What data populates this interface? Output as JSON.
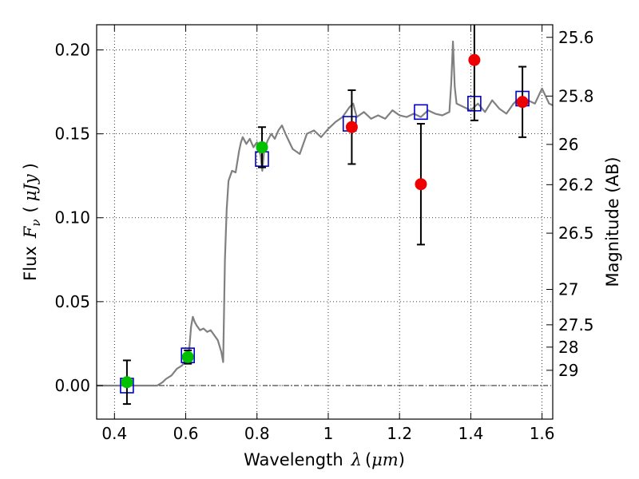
{
  "chart_data": {
    "type": "scatter",
    "xlabel": {
      "text": "Wavelength",
      "symbol": "λ",
      "unit_open": "(",
      "unit": "μm",
      "unit_close": ")"
    },
    "ylabel": {
      "text": "Flux",
      "symbol": "F",
      "subscript": "ν",
      "unit_open": "(",
      "unit": "μJy",
      "unit_close": ")"
    },
    "y2label": "Magnitude (AB)",
    "xlim": [
      0.35,
      1.63
    ],
    "ylim": [
      -0.02,
      0.215
    ],
    "grid": true,
    "zero_line": true,
    "x_ticks": [
      0.4,
      0.6,
      0.8,
      1.0,
      1.2,
      1.4,
      1.6
    ],
    "x_tick_labels": [
      "0.4",
      "0.6",
      "0.8",
      "1",
      "1.2",
      "1.4",
      "1.6"
    ],
    "y_ticks": [
      0.0,
      0.05,
      0.1,
      0.15,
      0.2
    ],
    "y_tick_labels": [
      "0.00",
      "0.05",
      "0.10",
      "0.15",
      "0.20"
    ],
    "mag_ticks": [
      {
        "label": "25.6",
        "flux": 0.2075
      },
      {
        "label": "25.8",
        "flux": 0.1725
      },
      {
        "label": "26",
        "flux": 0.1437
      },
      {
        "label": "26.2",
        "flux": 0.1197
      },
      {
        "label": "26.5",
        "flux": 0.0908
      },
      {
        "label": "27",
        "flux": 0.0573
      },
      {
        "label": "27.5",
        "flux": 0.0362
      },
      {
        "label": "28",
        "flux": 0.0229
      },
      {
        "label": "29",
        "flux": 0.0091
      }
    ],
    "series": [
      {
        "kind": "sed_model",
        "color": "#808080",
        "x": [
          0.35,
          0.52,
          0.535,
          0.545,
          0.56,
          0.575,
          0.59,
          0.6,
          0.61,
          0.615,
          0.62,
          0.625,
          0.63,
          0.64,
          0.65,
          0.66,
          0.67,
          0.68,
          0.69,
          0.7,
          0.705,
          0.71,
          0.715,
          0.72,
          0.73,
          0.74,
          0.75,
          0.755,
          0.76,
          0.77,
          0.78,
          0.79,
          0.8,
          0.81,
          0.815,
          0.82,
          0.83,
          0.84,
          0.85,
          0.86,
          0.87,
          0.88,
          0.9,
          0.92,
          0.94,
          0.96,
          0.98,
          1.0,
          1.02,
          1.04,
          1.06,
          1.07,
          1.08,
          1.1,
          1.12,
          1.14,
          1.16,
          1.18,
          1.2,
          1.22,
          1.24,
          1.26,
          1.28,
          1.3,
          1.32,
          1.34,
          1.345,
          1.35,
          1.355,
          1.36,
          1.38,
          1.4,
          1.42,
          1.44,
          1.46,
          1.48,
          1.5,
          1.52,
          1.54,
          1.56,
          1.58,
          1.6,
          1.62,
          1.63
        ],
        "y": [
          0.0,
          0.0,
          0.002,
          0.004,
          0.006,
          0.01,
          0.012,
          0.016,
          0.022,
          0.035,
          0.041,
          0.038,
          0.036,
          0.033,
          0.034,
          0.032,
          0.033,
          0.03,
          0.027,
          0.02,
          0.014,
          0.075,
          0.105,
          0.122,
          0.128,
          0.127,
          0.14,
          0.145,
          0.148,
          0.144,
          0.147,
          0.142,
          0.145,
          0.137,
          0.128,
          0.14,
          0.146,
          0.15,
          0.147,
          0.152,
          0.155,
          0.15,
          0.141,
          0.138,
          0.15,
          0.152,
          0.148,
          0.153,
          0.157,
          0.16,
          0.166,
          0.168,
          0.16,
          0.163,
          0.159,
          0.161,
          0.159,
          0.164,
          0.161,
          0.16,
          0.162,
          0.16,
          0.164,
          0.162,
          0.161,
          0.163,
          0.18,
          0.205,
          0.178,
          0.168,
          0.166,
          0.164,
          0.168,
          0.163,
          0.17,
          0.165,
          0.162,
          0.168,
          0.172,
          0.17,
          0.168,
          0.177,
          0.168,
          0.167
        ]
      },
      {
        "kind": "model_photometry",
        "marker": "open-square",
        "color": "#0000cc",
        "x": [
          0.435,
          0.606,
          0.814,
          1.06,
          1.26,
          1.41,
          1.545
        ],
        "y": [
          0.0,
          0.018,
          0.135,
          0.156,
          0.163,
          0.168,
          0.171
        ]
      },
      {
        "kind": "observed_optical",
        "marker": "filled-circle",
        "color": "#00c000",
        "x": [
          0.435,
          0.606,
          0.814
        ],
        "y": [
          0.002,
          0.017,
          0.142
        ],
        "yerr": [
          0.013,
          0.004,
          0.012
        ]
      },
      {
        "kind": "observed_nir",
        "marker": "filled-circle",
        "color": "#ee0000",
        "x": [
          1.066,
          1.26,
          1.41,
          1.545
        ],
        "y": [
          0.154,
          0.12,
          0.194,
          0.169
        ],
        "yerr": [
          0.022,
          0.036,
          0.036,
          0.021
        ]
      }
    ]
  }
}
